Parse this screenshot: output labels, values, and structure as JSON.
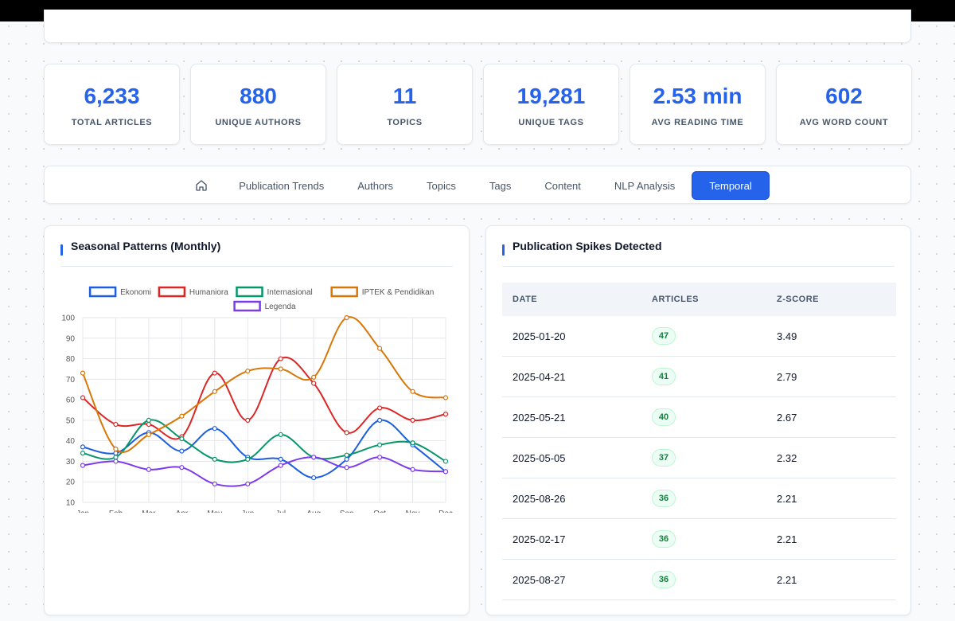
{
  "stats": [
    {
      "value": "6,233",
      "label": "TOTAL ARTICLES"
    },
    {
      "value": "880",
      "label": "UNIQUE AUTHORS"
    },
    {
      "value": "11",
      "label": "TOPICS"
    },
    {
      "value": "19,281",
      "label": "UNIQUE TAGS"
    },
    {
      "value": "2.53 min",
      "label": "AVG READING TIME"
    },
    {
      "value": "602",
      "label": "AVG WORD COUNT"
    }
  ],
  "nav": {
    "home_icon": "home-icon",
    "tabs": [
      "Publication Trends",
      "Authors",
      "Topics",
      "Tags",
      "Content",
      "NLP Analysis",
      "Temporal"
    ],
    "active": "Temporal"
  },
  "seasonal": {
    "title": "Seasonal Patterns (Monthly)"
  },
  "spikes": {
    "title": "Publication Spikes Detected",
    "columns": [
      "DATE",
      "ARTICLES",
      "Z-SCORE"
    ],
    "rows": [
      {
        "date": "2025-01-20",
        "articles": "47",
        "z": "3.49"
      },
      {
        "date": "2025-04-21",
        "articles": "41",
        "z": "2.79"
      },
      {
        "date": "2025-05-21",
        "articles": "40",
        "z": "2.67"
      },
      {
        "date": "2025-05-05",
        "articles": "37",
        "z": "2.32"
      },
      {
        "date": "2025-08-26",
        "articles": "36",
        "z": "2.21"
      },
      {
        "date": "2025-02-17",
        "articles": "36",
        "z": "2.21"
      },
      {
        "date": "2025-08-27",
        "articles": "36",
        "z": "2.21"
      }
    ]
  },
  "chart_data": {
    "type": "line",
    "x": [
      "Jan",
      "Feb",
      "Mar",
      "Apr",
      "May",
      "Jun",
      "Jul",
      "Aug",
      "Sep",
      "Oct",
      "Nov",
      "Dec"
    ],
    "ylim": [
      10,
      100
    ],
    "yticks": [
      10,
      20,
      30,
      40,
      50,
      60,
      70,
      80,
      90,
      100
    ],
    "grid": true,
    "legend": "top",
    "series": [
      {
        "name": "Ekonomi",
        "color": "#1d5ee0",
        "values": [
          37,
          34,
          44,
          35,
          46,
          32,
          31,
          22,
          31,
          50,
          38,
          25
        ]
      },
      {
        "name": "Humaniora",
        "color": "#dc2626",
        "values": [
          61,
          48,
          48,
          42,
          73,
          50,
          80,
          68,
          44,
          56,
          50,
          53
        ]
      },
      {
        "name": "Internasional",
        "color": "#059669",
        "values": [
          34,
          32,
          50,
          41,
          31,
          31,
          43,
          32,
          33,
          38,
          39,
          30
        ]
      },
      {
        "name": "IPTEK & Pendidikan",
        "color": "#d97706",
        "values": [
          73,
          36,
          43,
          52,
          64,
          74,
          75,
          71,
          100,
          85,
          64,
          61
        ]
      },
      {
        "name": "Legenda",
        "color": "#7c3aed",
        "values": [
          28,
          30,
          26,
          27,
          19,
          19,
          28,
          32,
          27,
          32,
          26,
          25
        ]
      }
    ]
  }
}
